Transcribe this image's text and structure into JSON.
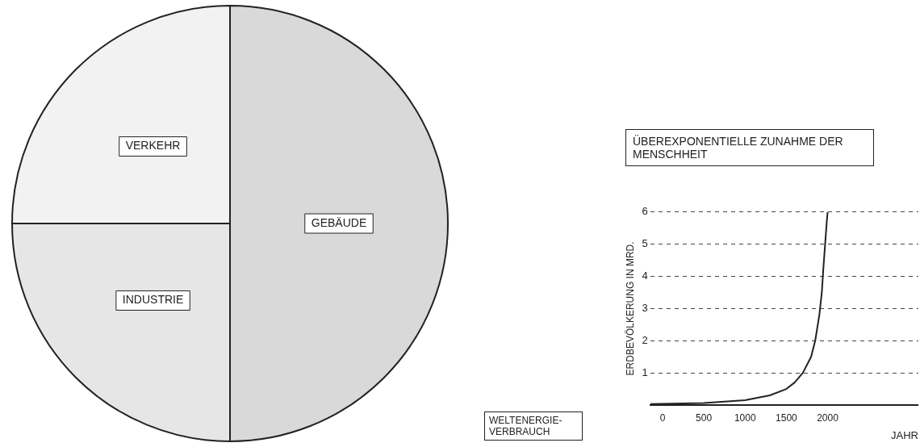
{
  "chart_data": [
    {
      "type": "pie",
      "categories": [
        "GEBÄUDE",
        "INDUSTRIE",
        "VERKEHR"
      ],
      "values": [
        50,
        25,
        25
      ],
      "colors": [
        "#d9d9d9",
        "#e6e6e6",
        "#f2f2f2"
      ],
      "legend": false,
      "annotations": [
        "WELTENERGIE-VERBRAUCH"
      ]
    },
    {
      "type": "line",
      "title": "ÜBEREXPONENTIELLE ZUNAHME DER MENSCHHEIT",
      "xlabel": "JAHR",
      "ylabel": "ERDBEVÖLKERUNG IN MRD.",
      "x": [
        -150,
        0,
        500,
        1000,
        1300,
        1500,
        1600,
        1700,
        1800,
        1850,
        1900,
        1930,
        1950,
        1970,
        1990,
        2000
      ],
      "values": [
        0.03,
        0.04,
        0.06,
        0.15,
        0.3,
        0.5,
        0.7,
        1,
        1.5,
        2,
        2.8,
        3.5,
        4.3,
        5,
        5.7,
        6
      ],
      "color": "#222222",
      "marker": "none",
      "xlim": [
        -150,
        3100
      ],
      "ylim": [
        0,
        6
      ],
      "xticks": [
        0,
        500,
        1000,
        1500,
        2000
      ],
      "yticks": [
        1,
        2,
        3,
        4,
        5,
        6
      ],
      "grid": "y",
      "legend": false
    }
  ]
}
